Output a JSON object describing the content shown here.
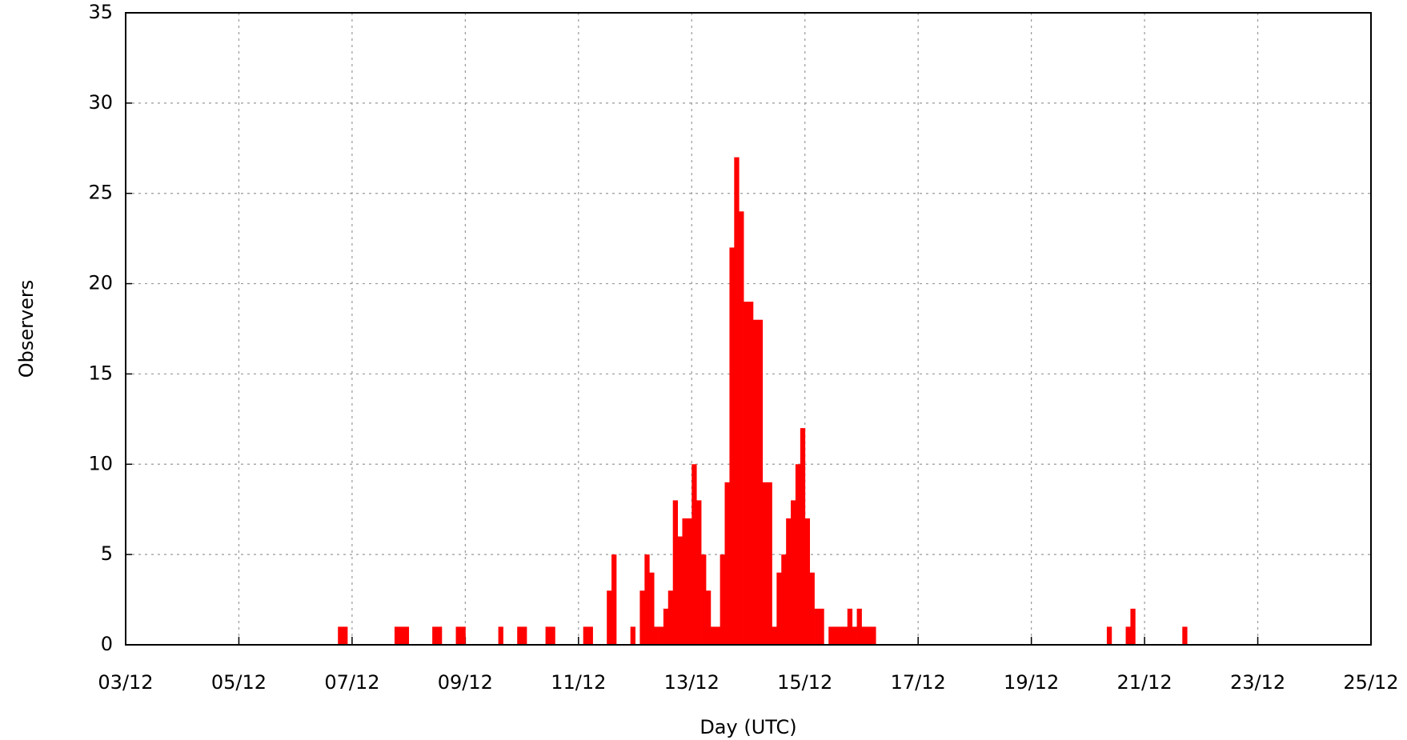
{
  "chart_data": {
    "type": "bar",
    "x_label": "Day (UTC)",
    "y_label": "Observers",
    "color": "#ff0000",
    "grid": true,
    "xlim": [
      3,
      25
    ],
    "xticks": [
      {
        "value": 3,
        "label": "03/12"
      },
      {
        "value": 5,
        "label": "05/12"
      },
      {
        "value": 7,
        "label": "07/12"
      },
      {
        "value": 9,
        "label": "09/12"
      },
      {
        "value": 11,
        "label": "11/12"
      },
      {
        "value": 13,
        "label": "13/12"
      },
      {
        "value": 15,
        "label": "15/12"
      },
      {
        "value": 17,
        "label": "17/12"
      },
      {
        "value": 19,
        "label": "19/12"
      },
      {
        "value": 21,
        "label": "21/12"
      },
      {
        "value": 23,
        "label": "23/12"
      },
      {
        "value": 25,
        "label": "25/12"
      }
    ],
    "ylim": [
      0,
      35
    ],
    "yticks": [
      0,
      5,
      10,
      15,
      20,
      25,
      30,
      35
    ],
    "x": [
      6.75,
      6.833,
      7.75,
      7.833,
      7.917,
      8.417,
      8.5,
      8.833,
      8.917,
      9.583,
      9.917,
      10,
      10.417,
      10.5,
      11.083,
      11.167,
      11.5,
      11.583,
      11.917,
      12.083,
      12.167,
      12.25,
      12.333,
      12.417,
      12.5,
      12.583,
      12.667,
      12.75,
      12.833,
      12.917,
      13,
      13.083,
      13.167,
      13.25,
      13.333,
      13.417,
      13.5,
      13.583,
      13.667,
      13.75,
      13.833,
      13.917,
      14,
      14.083,
      14.167,
      14.25,
      14.333,
      14.417,
      14.5,
      14.583,
      14.667,
      14.75,
      14.833,
      14.917,
      15,
      15.083,
      15.167,
      15.25,
      15.417,
      15.5,
      15.583,
      15.667,
      15.75,
      15.833,
      15.917,
      16,
      16.083,
      16.167,
      20.333,
      20.667,
      20.75,
      21.667
    ],
    "values": [
      1,
      1,
      1,
      1,
      1,
      1,
      1,
      1,
      1,
      1,
      1,
      1,
      1,
      1,
      1,
      1,
      3,
      5,
      1,
      3,
      5,
      4,
      1,
      1,
      2,
      3,
      8,
      6,
      7,
      7,
      10,
      8,
      5,
      3,
      1,
      1,
      5,
      9,
      22,
      27,
      24,
      19,
      19,
      18,
      18,
      9,
      9,
      1,
      4,
      5,
      7,
      8,
      10,
      12,
      7,
      4,
      2,
      2,
      1,
      1,
      1,
      1,
      2,
      1,
      2,
      1,
      1,
      1,
      1,
      1,
      2,
      1
    ]
  }
}
